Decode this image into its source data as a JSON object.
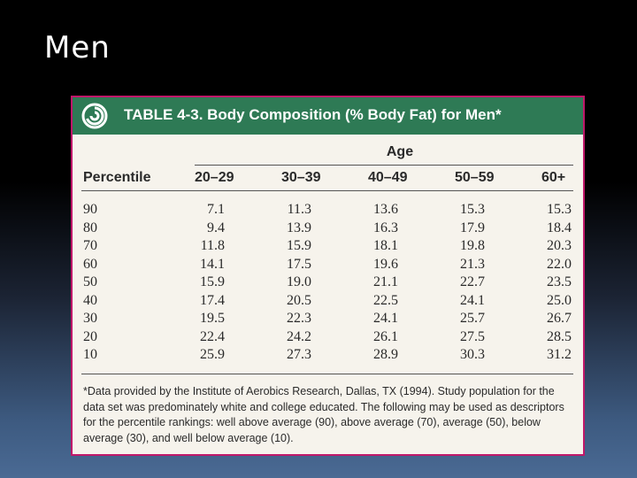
{
  "slide": {
    "title": "Men"
  },
  "table": {
    "banner_title": "TABLE 4-3. Body Composition (% Body Fat) for Men*",
    "logo_icon": "spiral-logo-icon",
    "colors": {
      "banner": "#2e7a55",
      "border": "#c0186a",
      "paper": "#f6f3ec"
    },
    "age_label": "Age",
    "headers": [
      "Percentile",
      "20–29",
      "30–39",
      "40–49",
      "50–59",
      "60+"
    ],
    "rows": [
      [
        "90",
        "7.1",
        "11.3",
        "13.6",
        "15.3",
        "15.3"
      ],
      [
        "80",
        "9.4",
        "13.9",
        "16.3",
        "17.9",
        "18.4"
      ],
      [
        "70",
        "11.8",
        "15.9",
        "18.1",
        "19.8",
        "20.3"
      ],
      [
        "60",
        "14.1",
        "17.5",
        "19.6",
        "21.3",
        "22.0"
      ],
      [
        "50",
        "15.9",
        "19.0",
        "21.1",
        "22.7",
        "23.5"
      ],
      [
        "40",
        "17.4",
        "20.5",
        "22.5",
        "24.1",
        "25.0"
      ],
      [
        "30",
        "19.5",
        "22.3",
        "24.1",
        "25.7",
        "26.7"
      ],
      [
        "20",
        "22.4",
        "24.2",
        "26.1",
        "27.5",
        "28.5"
      ],
      [
        "10",
        "25.9",
        "27.3",
        "28.9",
        "30.3",
        "31.2"
      ]
    ],
    "footnote": "*Data provided by the Institute of Aerobics Research, Dallas, TX (1994). Study population for the data set was predominately white and college educated. The following may be used as descriptors for the percentile rankings: well above average (90), above average (70), average (50), below average (30), and well below average (10)."
  }
}
